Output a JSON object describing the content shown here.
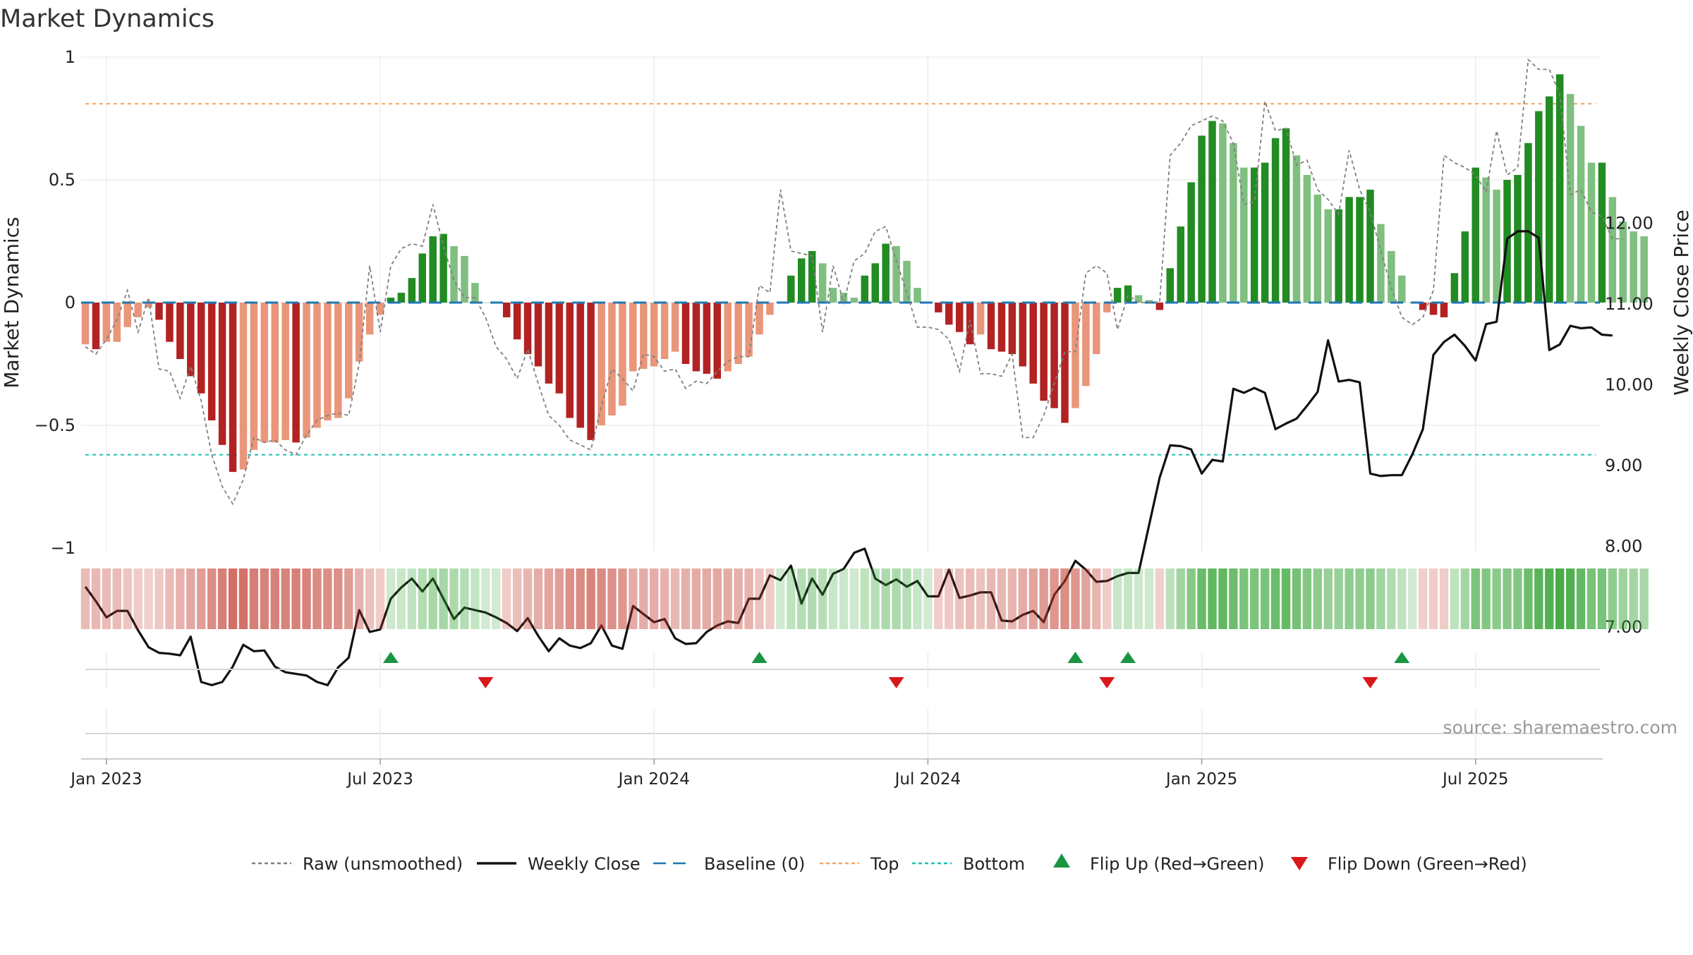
{
  "title": "Market Dynamics",
  "source": "source: sharemaestro.com",
  "colors": {
    "bar_pos_strong": "#228b22",
    "bar_pos_light": "#7fbf7f",
    "bar_neg_strong": "#b22222",
    "bar_neg_light": "#e9967a",
    "close_line": "#111111",
    "raw_line": "#808080",
    "baseline": "#1f77b4",
    "top_line": "#f4a460",
    "bottom_line": "#20c0b0",
    "flip_up": "#1a9641",
    "flip_down": "#d7191c",
    "strip_green": "#2ca02c",
    "strip_red": "#c0392b",
    "grid": "#e6e6e6"
  },
  "chart_data": {
    "type": "bar",
    "title": "Market Dynamics",
    "ylabel": "Market Dynamics",
    "y2label": "Weekly Close Price",
    "ylim": [
      -1,
      1
    ],
    "y2lim": [
      6.0,
      12.2
    ],
    "yticks": [
      "1",
      "0.5",
      "0",
      "−0.5",
      "−1"
    ],
    "y2ticks": [
      "12.00",
      "11.00",
      "10.00",
      "9.00",
      "8.00",
      "7.00"
    ],
    "y2tick_values": [
      12,
      11,
      10,
      9,
      8,
      7
    ],
    "xticks": [
      "Jan 2023",
      "Jul 2023",
      "Jan 2024",
      "Jul 2024",
      "Jan 2025",
      "Jul 2025"
    ],
    "xtick_weeks": [
      2,
      28,
      54,
      80,
      106,
      132
    ],
    "top_level": 0.81,
    "bottom_level": -0.62,
    "series": [
      {
        "name": "Market Dynamics",
        "values": [
          -0.17,
          -0.19,
          -0.16,
          -0.16,
          -0.1,
          -0.06,
          -0.02,
          -0.07,
          -0.16,
          -0.23,
          -0.3,
          -0.37,
          -0.48,
          -0.58,
          -0.69,
          -0.68,
          -0.6,
          -0.57,
          -0.57,
          -0.56,
          -0.57,
          -0.55,
          -0.51,
          -0.48,
          -0.47,
          -0.39,
          -0.24,
          -0.13,
          -0.05,
          0.02,
          0.04,
          0.1,
          0.2,
          0.27,
          0.28,
          0.23,
          0.19,
          0.08,
          0.0,
          0.0,
          -0.06,
          -0.15,
          -0.21,
          -0.26,
          -0.33,
          -0.37,
          -0.47,
          -0.51,
          -0.56,
          -0.5,
          -0.46,
          -0.42,
          -0.28,
          -0.27,
          -0.26,
          -0.23,
          -0.2,
          -0.25,
          -0.28,
          -0.29,
          -0.31,
          -0.28,
          -0.25,
          -0.22,
          -0.13,
          -0.05,
          0.0,
          0.11,
          0.18,
          0.21,
          0.16,
          0.06,
          0.04,
          0.02,
          0.11,
          0.16,
          0.24,
          0.23,
          0.17,
          0.06,
          0.0,
          -0.04,
          -0.09,
          -0.12,
          -0.17,
          -0.13,
          -0.19,
          -0.2,
          -0.21,
          -0.26,
          -0.33,
          -0.4,
          -0.43,
          -0.49,
          -0.43,
          -0.34,
          -0.21,
          -0.04,
          0.06,
          0.07,
          0.03,
          0.01,
          -0.03,
          0.14,
          0.31,
          0.49,
          0.68,
          0.74,
          0.73,
          0.65,
          0.55,
          0.55,
          0.57,
          0.67,
          0.71,
          0.6,
          0.52,
          0.44,
          0.38,
          0.38,
          0.43,
          0.43,
          0.46,
          0.32,
          0.21,
          0.11,
          0.0,
          -0.03,
          -0.05,
          -0.06,
          0.12,
          0.29,
          0.55,
          0.51,
          0.46,
          0.5,
          0.52,
          0.65,
          0.78,
          0.84,
          0.93,
          0.85,
          0.72,
          0.57,
          0.57,
          0.43,
          0.33,
          0.29,
          0.27
        ]
      },
      {
        "name": "Raw (unsmoothed)",
        "values": [
          -0.18,
          -0.21,
          -0.15,
          -0.07,
          0.05,
          -0.12,
          0.02,
          -0.27,
          -0.28,
          -0.39,
          -0.26,
          -0.4,
          -0.62,
          -0.75,
          -0.82,
          -0.72,
          -0.55,
          -0.57,
          -0.56,
          -0.6,
          -0.62,
          -0.54,
          -0.48,
          -0.46,
          -0.45,
          -0.46,
          -0.25,
          0.15,
          -0.12,
          0.15,
          0.22,
          0.24,
          0.23,
          0.4,
          0.23,
          0.09,
          0.02,
          0.02,
          -0.06,
          -0.18,
          -0.23,
          -0.31,
          -0.19,
          -0.33,
          -0.46,
          -0.5,
          -0.56,
          -0.58,
          -0.6,
          -0.42,
          -0.27,
          -0.31,
          -0.36,
          -0.21,
          -0.22,
          -0.28,
          -0.27,
          -0.35,
          -0.32,
          -0.33,
          -0.28,
          -0.24,
          -0.22,
          -0.22,
          0.07,
          0.04,
          0.46,
          0.21,
          0.2,
          0.19,
          -0.12,
          0.15,
          0.0,
          0.17,
          0.2,
          0.29,
          0.31,
          0.17,
          0.04,
          -0.1,
          -0.1,
          -0.11,
          -0.15,
          -0.28,
          -0.07,
          -0.29,
          -0.29,
          -0.3,
          -0.21,
          -0.55,
          -0.55,
          -0.46,
          -0.33,
          -0.2,
          -0.2,
          0.12,
          0.15,
          0.12,
          -0.11,
          0.03,
          0.0,
          0.0,
          0.0,
          0.6,
          0.65,
          0.72,
          0.74,
          0.76,
          0.74,
          0.65,
          0.4,
          0.41,
          0.82,
          0.7,
          0.71,
          0.56,
          0.58,
          0.46,
          0.42,
          0.36,
          0.62,
          0.46,
          0.37,
          0.21,
          0.06,
          -0.06,
          -0.09,
          -0.06,
          0.05,
          0.6,
          0.57,
          0.55,
          0.52,
          0.45,
          0.7,
          0.52,
          0.55,
          0.99,
          0.95,
          0.95,
          0.85,
          0.44,
          0.46,
          0.37,
          0.35,
          0.26,
          0.26
        ]
      },
      {
        "name": "Weekly Close",
        "values": [
          7.5,
          7.32,
          7.12,
          7.2,
          7.2,
          6.96,
          6.75,
          6.68,
          6.67,
          6.65,
          6.88,
          6.32,
          6.28,
          6.32,
          6.51,
          6.78,
          6.7,
          6.71,
          6.51,
          6.44,
          6.42,
          6.4,
          6.32,
          6.28,
          6.5,
          6.62,
          7.21,
          6.94,
          6.97,
          7.35,
          7.49,
          7.6,
          7.44,
          7.6,
          7.35,
          7.1,
          7.24,
          7.21,
          7.18,
          7.12,
          7.05,
          6.95,
          7.11,
          6.89,
          6.7,
          6.86,
          6.77,
          6.74,
          6.8,
          7.02,
          6.77,
          6.73,
          7.26,
          7.16,
          7.06,
          7.1,
          6.86,
          6.79,
          6.8,
          6.94,
          7.02,
          7.07,
          7.05,
          7.35,
          7.35,
          7.64,
          7.58,
          7.76,
          7.29,
          7.6,
          7.4,
          7.66,
          7.72,
          7.92,
          7.97,
          7.6,
          7.52,
          7.59,
          7.5,
          7.57,
          7.38,
          7.38,
          7.71,
          7.36,
          7.39,
          7.43,
          7.43,
          7.08,
          7.07,
          7.15,
          7.2,
          7.06,
          7.4,
          7.57,
          7.82,
          7.71,
          7.56,
          7.57,
          7.63,
          7.67,
          7.67,
          8.26,
          8.85,
          9.25,
          9.24,
          9.2,
          8.9,
          9.07,
          9.05,
          9.95,
          9.9,
          9.96,
          9.9,
          9.45,
          9.52,
          9.58,
          9.74,
          9.91,
          10.55,
          10.04,
          10.06,
          10.03,
          8.9,
          8.87,
          8.88,
          8.88,
          9.14,
          9.45,
          10.37,
          10.53,
          10.62,
          10.48,
          10.3,
          10.75,
          10.78,
          11.81,
          11.9,
          11.9,
          11.82,
          10.43,
          10.5,
          10.73,
          10.7,
          10.71,
          10.62,
          10.61
        ]
      }
    ],
    "flip_up_weeks": [
      29,
      64,
      94,
      99,
      125
    ],
    "flip_down_weeks": [
      38,
      77,
      97,
      122
    ]
  },
  "legend": [
    {
      "label": "Raw (unsmoothed)",
      "kind": "dotted",
      "color": "#808080"
    },
    {
      "label": "Weekly Close",
      "kind": "solid",
      "color": "#111111"
    },
    {
      "label": "Baseline (0)",
      "kind": "dashed",
      "color": "#1f77b4"
    },
    {
      "label": "Top",
      "kind": "dotted",
      "color": "#f4a460"
    },
    {
      "label": "Bottom",
      "kind": "dotted",
      "color": "#20c0b0"
    },
    {
      "label": "Flip Up (Red→Green)",
      "kind": "up",
      "color": "#1a9641"
    },
    {
      "label": "Flip Down (Green→Red)",
      "kind": "down",
      "color": "#d7191c"
    }
  ]
}
